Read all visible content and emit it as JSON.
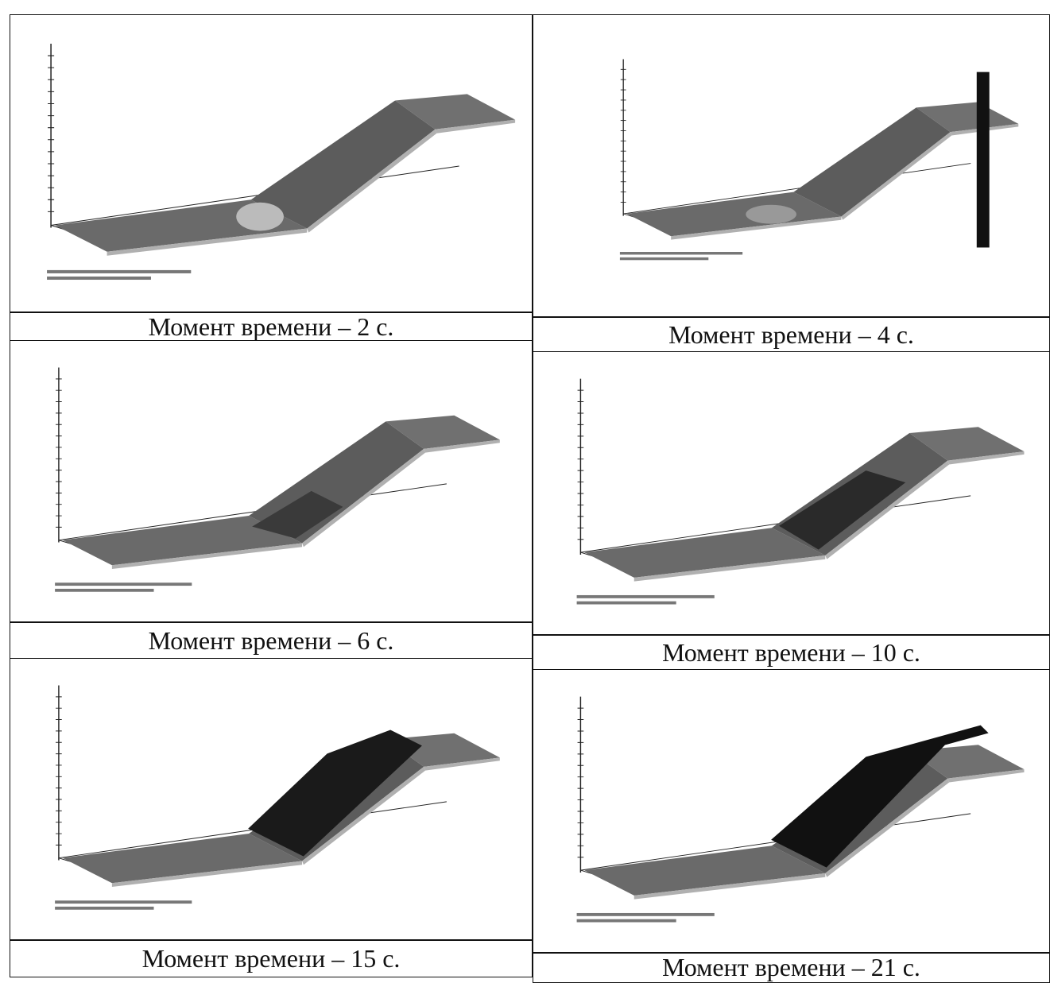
{
  "panels": [
    {
      "caption": "Момент времени – 2 с."
    },
    {
      "caption": "Момент времени – 4 с."
    },
    {
      "caption": "Момент времени – 6 с."
    },
    {
      "caption": "Момент времени – 10 с."
    },
    {
      "caption": "Момент времени – 15 с."
    },
    {
      "caption": "Момент времени – 21 с."
    }
  ]
}
